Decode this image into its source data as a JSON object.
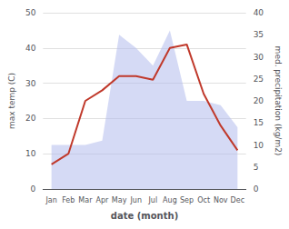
{
  "chart_data": {
    "type": "line",
    "xlabel": "date (month)",
    "ylabel": "max temp (C)",
    "y2label": "med. precipitation (kg/m2)",
    "categories": [
      "Jan",
      "Feb",
      "Mar",
      "Apr",
      "May",
      "Jun",
      "Jul",
      "Aug",
      "Sep",
      "Oct",
      "Nov",
      "Dec"
    ],
    "series": [
      {
        "type": "area",
        "axis": "y2",
        "color": "#b3bcec",
        "values": [
          10,
          10,
          10,
          11,
          35,
          32,
          28,
          36,
          20,
          20,
          19,
          14
        ]
      },
      {
        "type": "line",
        "color": "#c0392b",
        "values": [
          7,
          10,
          25,
          28,
          32,
          32,
          31,
          40,
          41,
          27,
          18,
          11
        ]
      }
    ],
    "ylim": [
      0,
      50
    ],
    "yticks": [
      0,
      10,
      20,
      30,
      40,
      50
    ],
    "y2lim": [
      0,
      40
    ],
    "y2ticks": [
      0,
      5,
      10,
      15,
      20,
      25,
      30,
      35,
      40
    ],
    "grid": true
  }
}
